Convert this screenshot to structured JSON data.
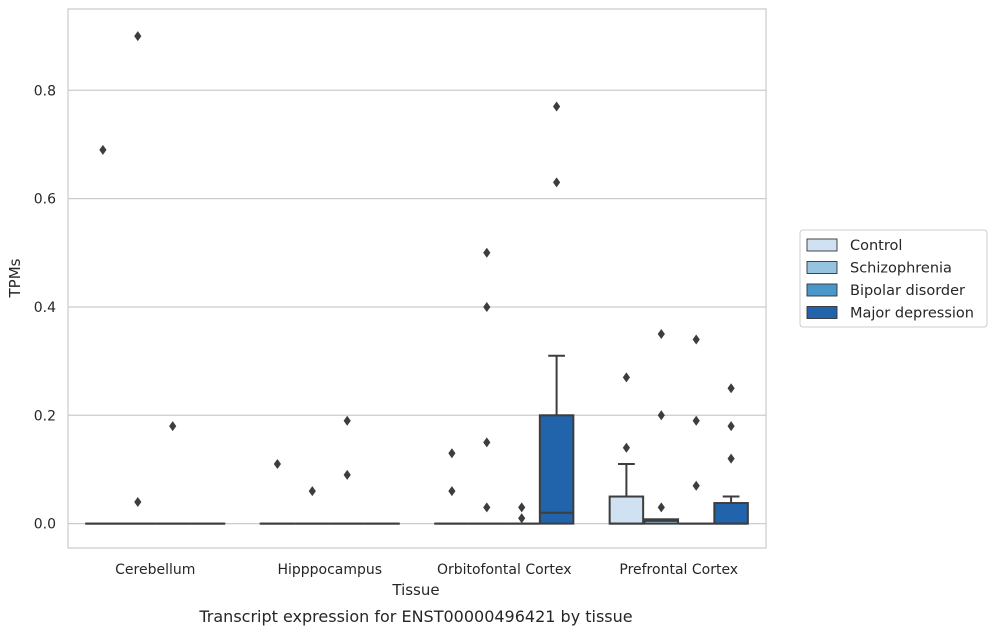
{
  "chart_data": {
    "type": "box",
    "caption": "Transcript expression for ENST00000496421 by tissue",
    "xlabel": "Tissue",
    "ylabel": "TPMs",
    "ylim": [
      -0.045,
      0.95
    ],
    "yticks": [
      0.0,
      0.2,
      0.4,
      0.6,
      0.8
    ],
    "ytick_labels": [
      "0.0",
      "0.2",
      "0.4",
      "0.6",
      "0.8"
    ],
    "grid": true,
    "legend_position": "outside-right",
    "categories": [
      "Cerebellum",
      "Hipppocampus",
      "Orbitofontal Cortex",
      "Prefrontal Cortex"
    ],
    "series": [
      {
        "name": "Control",
        "color": "#d0e1f2",
        "boxes": [
          {
            "q1": 0,
            "median": 0,
            "q3": 0,
            "whisker_low": 0,
            "whisker_high": 0,
            "outliers": [
              0.69
            ]
          },
          {
            "q1": 0,
            "median": 0,
            "q3": 0,
            "whisker_low": 0,
            "whisker_high": 0,
            "outliers": [
              0.11
            ]
          },
          {
            "q1": 0,
            "median": 0,
            "q3": 0,
            "whisker_low": 0,
            "whisker_high": 0,
            "outliers": [
              0.13,
              0.06
            ]
          },
          {
            "q1": 0,
            "median": 0,
            "q3": 0.05,
            "whisker_low": 0,
            "whisker_high": 0.11,
            "outliers": [
              0.27,
              0.14
            ]
          }
        ]
      },
      {
        "name": "Schizophrenia",
        "color": "#94c4df",
        "boxes": [
          {
            "q1": 0,
            "median": 0,
            "q3": 0,
            "whisker_low": 0,
            "whisker_high": 0,
            "outliers": [
              0.9,
              0.04
            ]
          },
          {
            "q1": 0,
            "median": 0,
            "q3": 0,
            "whisker_low": 0,
            "whisker_high": 0,
            "outliers": [
              0.06
            ]
          },
          {
            "q1": 0,
            "median": 0,
            "q3": 0,
            "whisker_low": 0,
            "whisker_high": 0,
            "outliers": [
              0.5,
              0.4,
              0.15,
              0.03
            ]
          },
          {
            "q1": 0,
            "median": 0.005,
            "q3": 0.008,
            "whisker_low": 0,
            "whisker_high": 0.008,
            "outliers": [
              0.35,
              0.2,
              0.03
            ]
          }
        ]
      },
      {
        "name": "Bipolar disorder",
        "color": "#4a98c9",
        "boxes": [
          {
            "q1": 0,
            "median": 0,
            "q3": 0,
            "whisker_low": 0,
            "whisker_high": 0,
            "outliers": [
              0.18
            ]
          },
          {
            "q1": 0,
            "median": 0,
            "q3": 0,
            "whisker_low": 0,
            "whisker_high": 0,
            "outliers": [
              0.19,
              0.09
            ]
          },
          {
            "q1": 0,
            "median": 0,
            "q3": 0,
            "whisker_low": 0,
            "whisker_high": 0,
            "outliers": [
              0.03,
              0.01
            ]
          },
          {
            "q1": 0,
            "median": 0,
            "q3": 0,
            "whisker_low": 0,
            "whisker_high": 0,
            "outliers": [
              0.34,
              0.19,
              0.07
            ]
          }
        ]
      },
      {
        "name": "Major depression",
        "color": "#2164ab",
        "boxes": [
          {
            "q1": 0,
            "median": 0,
            "q3": 0,
            "whisker_low": 0,
            "whisker_high": 0,
            "outliers": []
          },
          {
            "q1": 0,
            "median": 0,
            "q3": 0,
            "whisker_low": 0,
            "whisker_high": 0,
            "outliers": []
          },
          {
            "q1": 0,
            "median": 0.02,
            "q3": 0.2,
            "whisker_low": 0,
            "whisker_high": 0.31,
            "outliers": [
              0.77,
              0.63
            ]
          },
          {
            "q1": 0,
            "median": 0,
            "q3": 0.038,
            "whisker_low": 0,
            "whisker_high": 0.05,
            "outliers": [
              0.25,
              0.18,
              0.12
            ]
          }
        ]
      }
    ]
  }
}
